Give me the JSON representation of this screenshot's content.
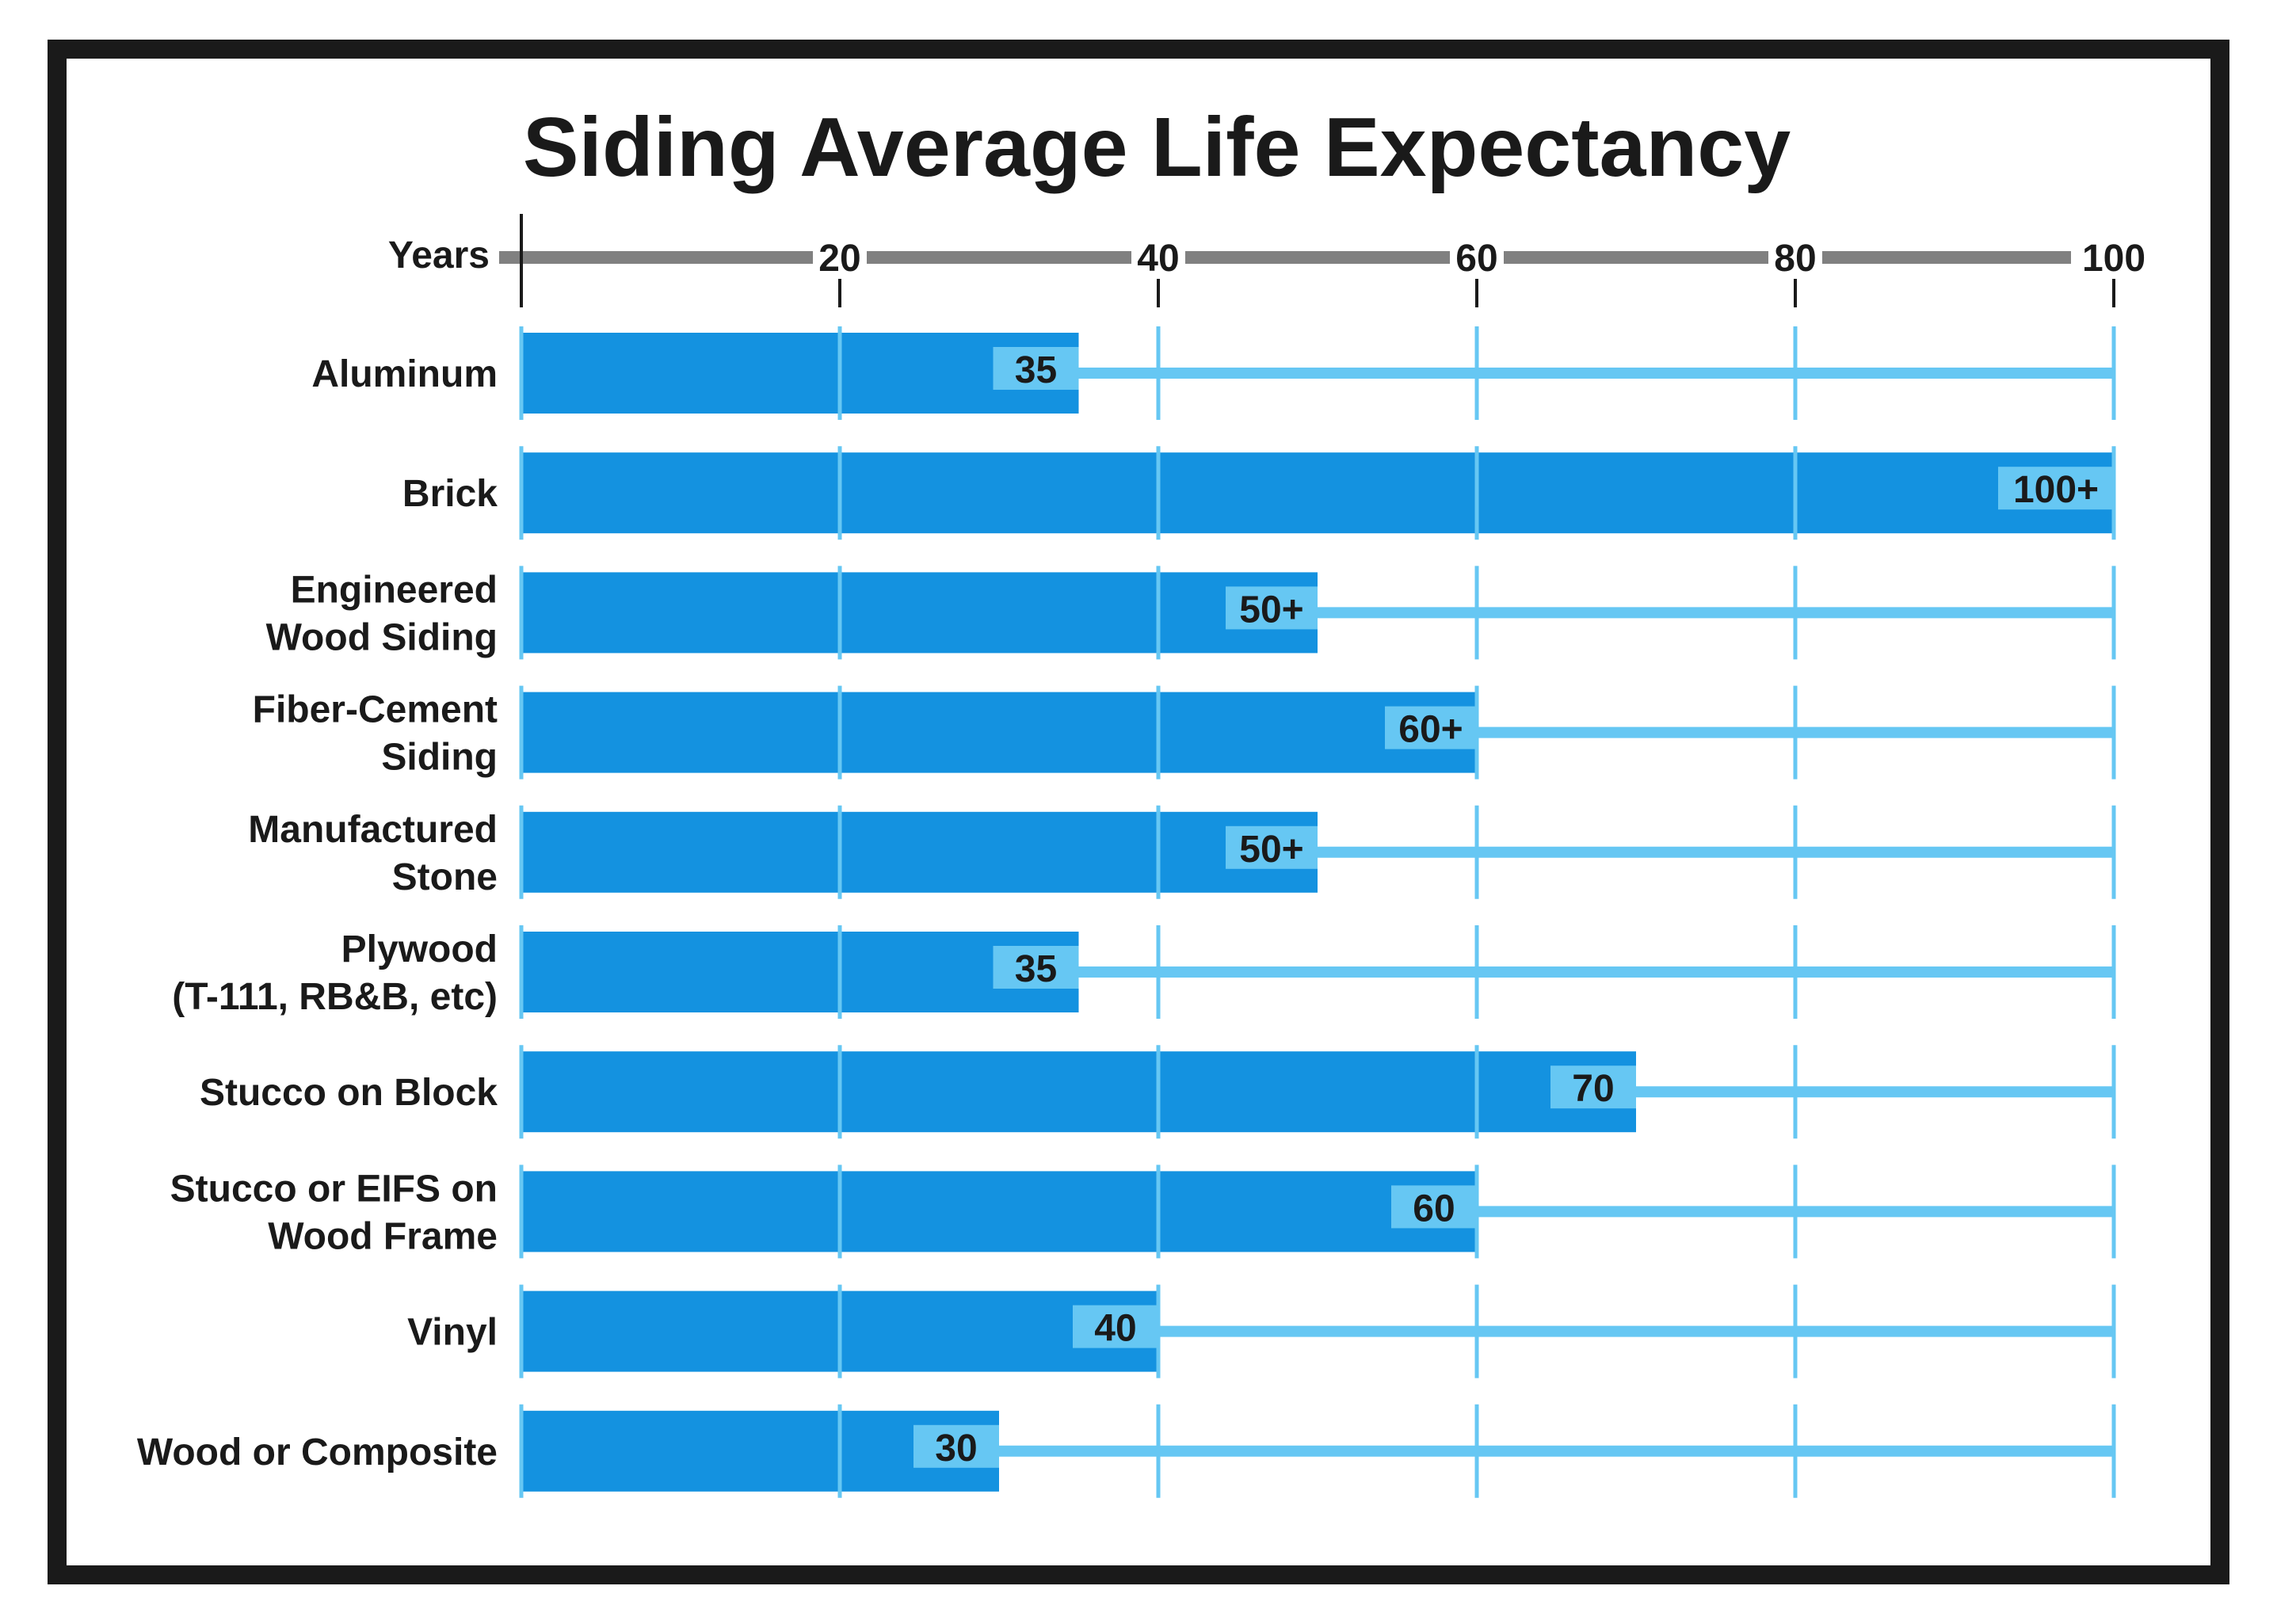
{
  "chart_data": {
    "type": "bar",
    "orientation": "horizontal",
    "title": "Siding Average Life Expectancy",
    "axis_label": "Years",
    "xlim": [
      0,
      100
    ],
    "ticks": [
      {
        "value": 20,
        "label": "20"
      },
      {
        "value": 40,
        "label": "40"
      },
      {
        "value": 60,
        "label": "60"
      },
      {
        "value": 80,
        "label": "80"
      },
      {
        "value": 100,
        "label": "100"
      }
    ],
    "categories": [
      [
        "Aluminum"
      ],
      [
        "Brick"
      ],
      [
        "Engineered",
        "Wood Siding"
      ],
      [
        "Fiber-Cement",
        "Siding"
      ],
      [
        "Manufactured",
        "Stone"
      ],
      [
        "Plywood",
        "(T-111, RB&B, etc)"
      ],
      [
        "Stucco on Block"
      ],
      [
        "Stucco or EIFS on",
        "Wood Frame"
      ],
      [
        "Vinyl"
      ],
      [
        "Wood or Composite"
      ]
    ],
    "values": [
      35,
      100,
      50,
      60,
      50,
      35,
      70,
      60,
      40,
      30
    ],
    "value_labels": [
      "35",
      "100+",
      "50+",
      "60+",
      "50+",
      "35",
      "70",
      "60",
      "40",
      "30"
    ],
    "colors": {
      "bar": "#1492e0",
      "grid": "#66c7f3",
      "label_box": "#66c7f3",
      "axis": "#808080",
      "text": "#1a1a1a"
    }
  }
}
